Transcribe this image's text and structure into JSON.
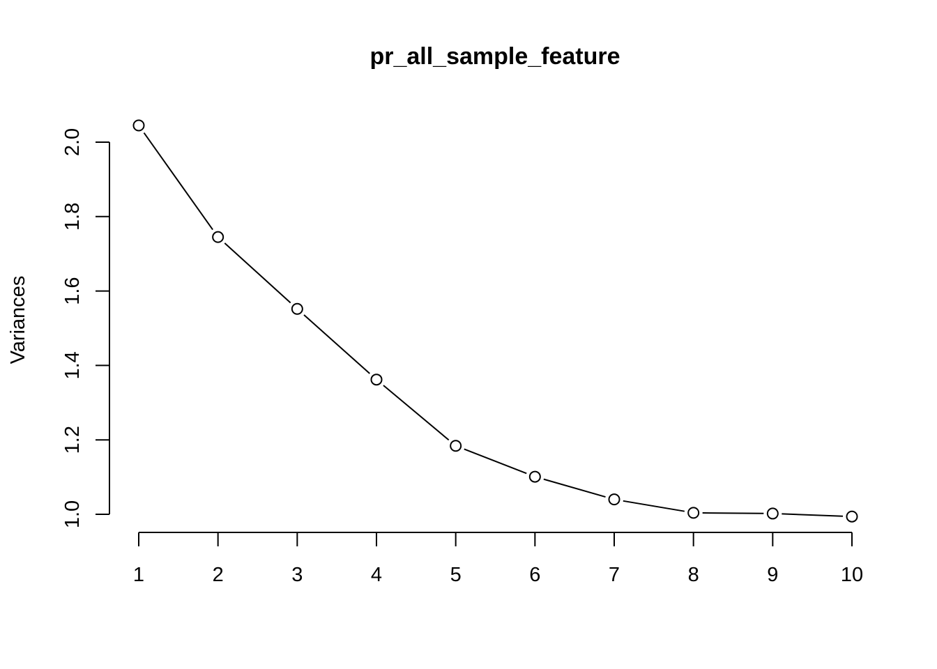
{
  "chart_data": {
    "type": "line",
    "title": "pr_all_sample_feature",
    "xlabel": "",
    "ylabel": "Variances",
    "x": [
      1,
      2,
      3,
      4,
      5,
      6,
      7,
      8,
      9,
      10
    ],
    "series": [
      {
        "values": [
          2.045,
          1.745,
          1.552,
          1.362,
          1.184,
          1.101,
          1.04,
          1.004,
          1.002,
          0.994
        ],
        "color": "#000000"
      }
    ],
    "xticks": [
      "1",
      "2",
      "3",
      "4",
      "5",
      "6",
      "7",
      "8",
      "9",
      "10"
    ],
    "yticks": [
      1.0,
      1.2,
      1.4,
      1.6,
      1.8,
      2.0
    ],
    "ytick_labels": [
      "1.0",
      "1.2",
      "1.4",
      "1.6",
      "1.8",
      "2.0"
    ],
    "xlim": [
      1,
      10
    ],
    "ylim": [
      1.0,
      2.0
    ],
    "grid": false,
    "legend": "none",
    "markers": "open-circle"
  }
}
